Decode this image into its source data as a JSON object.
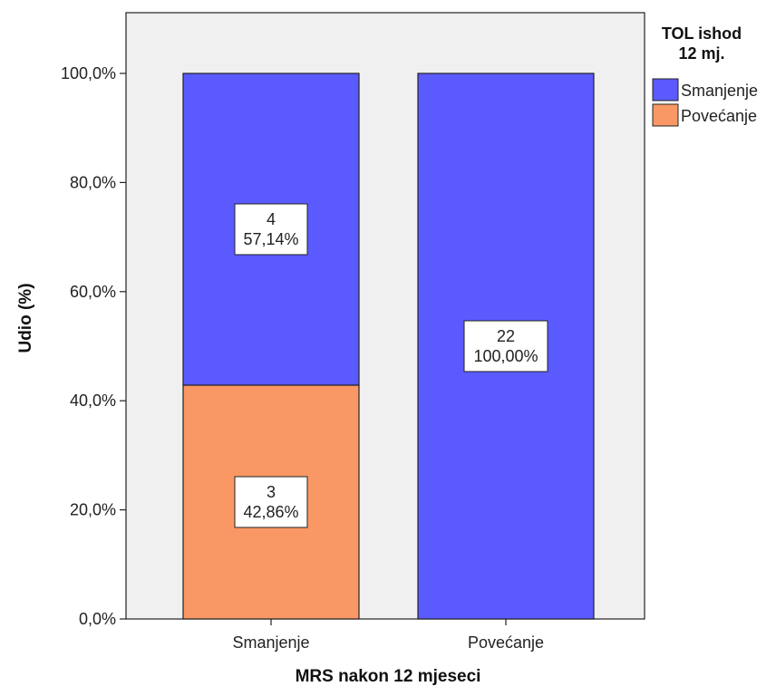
{
  "chart_data": {
    "type": "bar",
    "stacked": true,
    "percent": true,
    "categories": [
      "Smanjenje",
      "Povećanje"
    ],
    "series": [
      {
        "name": "Smanjenje",
        "color": "#5a5aff",
        "values": [
          57.14,
          100.0
        ],
        "counts": [
          4,
          22
        ],
        "labels": [
          "57,14%",
          "100,00%"
        ]
      },
      {
        "name": "Povećanje",
        "color": "#fa9865",
        "values": [
          42.86,
          0.0
        ],
        "counts": [
          3,
          0
        ],
        "labels": [
          "42,86%",
          ""
        ]
      }
    ],
    "stack_order_bottom_to_top": [
      "Povećanje",
      "Smanjenje"
    ],
    "xlabel": "MRS nakon 12 mjeseci",
    "ylabel": "Udio (%)",
    "ylim": [
      0,
      100
    ],
    "yticks": [
      0,
      20,
      40,
      60,
      80,
      100
    ],
    "ytick_labels": [
      "0,0%",
      "20,0%",
      "40,0%",
      "60,0%",
      "80,0%",
      "100,0%"
    ],
    "legend": {
      "title_lines": [
        "TOL ishod",
        "12 mj."
      ],
      "placement": "top-right, outside plot",
      "entries": [
        "Smanjenje",
        "Povećanje"
      ]
    },
    "plot_background": "#f0f0f0",
    "grid": false
  }
}
